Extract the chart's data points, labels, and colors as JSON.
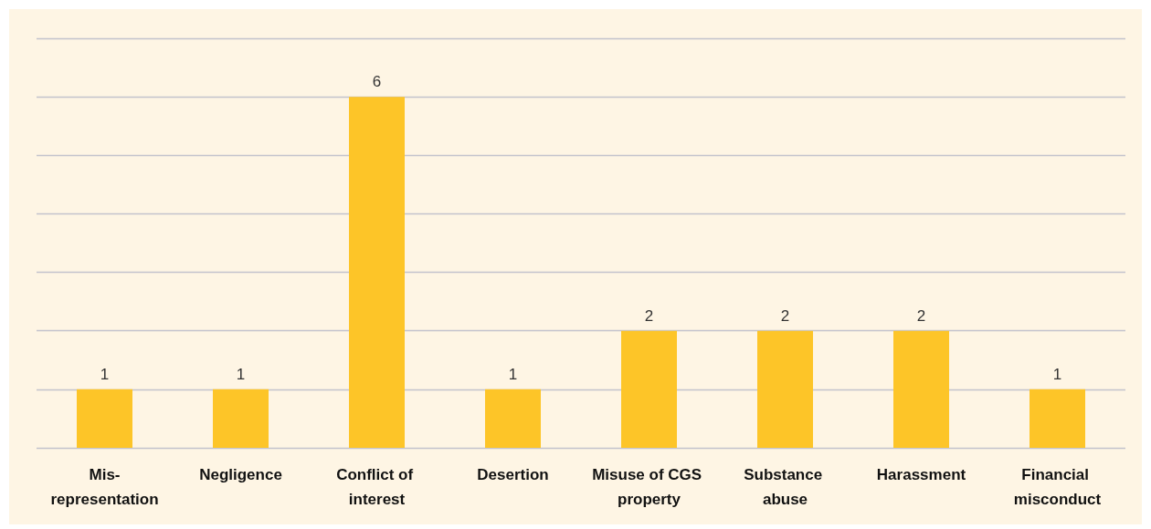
{
  "chart_data": {
    "type": "bar",
    "categories": [
      "Mis-representation",
      "Negligence",
      "Conflict of interest",
      "Desertion",
      "Misuse of CGS property",
      "Substance abuse",
      "Harassment",
      "Financial misconduct"
    ],
    "values": [
      1,
      1,
      6,
      1,
      2,
      2,
      2,
      1
    ],
    "color": "#fdc528",
    "ylim": [
      0,
      7
    ],
    "yticks": [
      {
        "value": 0,
        "label": null
      },
      {
        "value": 1,
        "label": null
      },
      {
        "value": 2,
        "label": null
      },
      {
        "value": 3,
        "label": null
      },
      {
        "value": 4,
        "label": null
      },
      {
        "value": 5,
        "label": null
      },
      {
        "value": 6,
        "label": null
      },
      {
        "value": 7,
        "label": null
      }
    ],
    "grid": "y",
    "data_labels": true,
    "tick_labels": "x"
  }
}
